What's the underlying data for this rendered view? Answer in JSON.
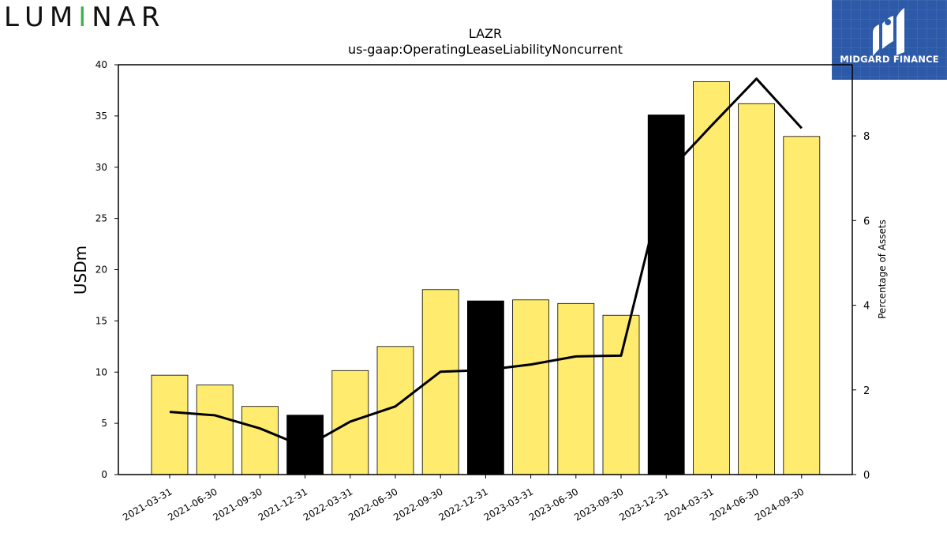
{
  "logos": {
    "left": {
      "letters": [
        "L",
        "U",
        "M",
        "I",
        "N",
        "A",
        "R"
      ],
      "colors": {
        "I": "#3cb44b",
        "M_stripe": "#e6194b",
        "N_stripe": "#4363d8"
      }
    },
    "right": {
      "text": "MIDGARD FINANCE",
      "background": "#2d5aa8"
    }
  },
  "chart_data": {
    "type": "bar+line",
    "title": "LAZR",
    "subtitle": "us-gaap:OperatingLeaseLiabilityNoncurrent",
    "ylabel_left": "USDm",
    "ylabel_right": "Percentage of Assets",
    "ylim_left": [
      0,
      40
    ],
    "ylim_right": [
      0,
      9.68
    ],
    "yticks_left": [
      0,
      5,
      10,
      15,
      20,
      25,
      30,
      35,
      40
    ],
    "yticks_right": [
      0,
      2,
      4,
      6,
      8
    ],
    "grid": false,
    "categories": [
      "2021-03-31",
      "2021-06-30",
      "2021-09-30",
      "2021-12-31",
      "2022-03-31",
      "2022-06-30",
      "2022-09-30",
      "2022-12-31",
      "2023-03-31",
      "2023-06-30",
      "2023-09-30",
      "2023-12-31",
      "2024-03-31",
      "2024-06-30",
      "2024-09-30"
    ],
    "bars": {
      "name": "USDm",
      "values": [
        9.7,
        8.75,
        6.65,
        5.8,
        10.15,
        12.5,
        18.05,
        16.95,
        17.05,
        16.7,
        15.55,
        35.1,
        38.35,
        36.2,
        33.0
      ],
      "colors": [
        "#ffec6e",
        "#ffec6e",
        "#ffec6e",
        "#000000",
        "#ffec6e",
        "#ffec6e",
        "#ffec6e",
        "#000000",
        "#ffec6e",
        "#ffec6e",
        "#ffec6e",
        "#000000",
        "#ffec6e",
        "#ffec6e",
        "#ffec6e"
      ]
    },
    "line": {
      "name": "Percentage of Assets",
      "values": [
        1.48,
        1.4,
        1.09,
        0.65,
        1.25,
        1.61,
        2.43,
        2.47,
        2.6,
        2.79,
        2.81,
        7.1,
        8.24,
        9.35,
        8.18
      ],
      "color": "#000000"
    }
  }
}
